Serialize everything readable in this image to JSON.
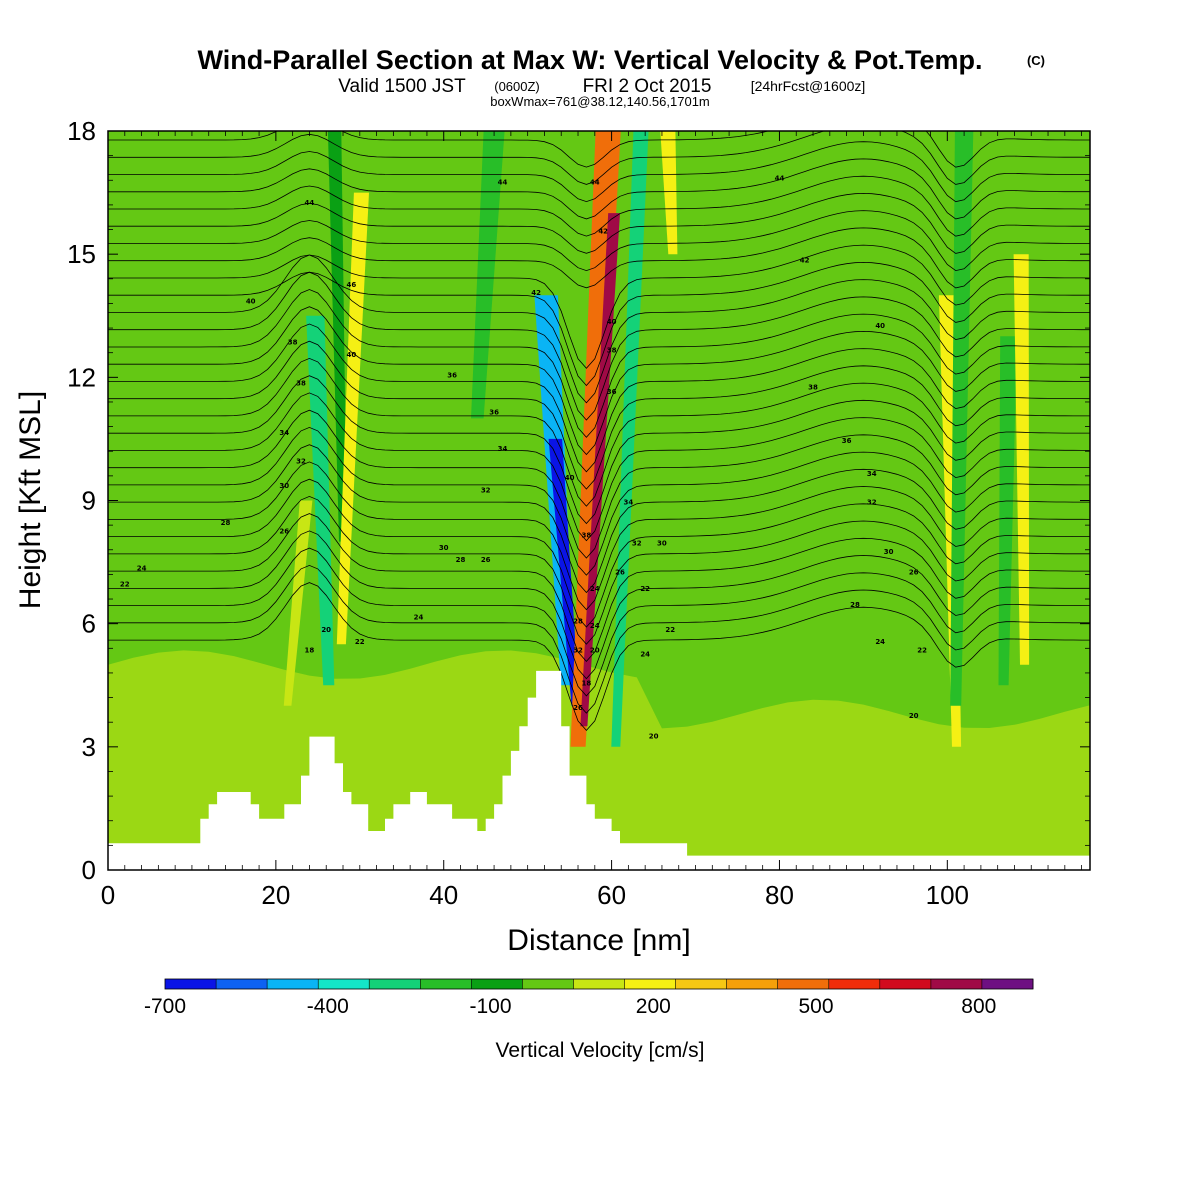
{
  "header": {
    "title": "Wind-Parallel Section at Max W: Vertical Velocity & Pot.Temp.",
    "title_mark": "(C)",
    "valid_prefix": "Valid 1500 JST",
    "valid_zulu": "(0600Z)",
    "valid_date": "FRI 2 Oct 2015",
    "forecast_tag": "[24hrFcst@1600z]",
    "box_info": "boxWmax=761@38.12,140.56,1701m"
  },
  "chart_data": {
    "type": "heatmap",
    "xlabel": "Distance [nm]",
    "ylabel": "Height [Kft MSL]",
    "xlim": [
      0,
      117
    ],
    "ylim": [
      0,
      18
    ],
    "x_ticks": [
      0,
      20,
      40,
      60,
      80,
      100
    ],
    "y_ticks": [
      0,
      3,
      6,
      9,
      12,
      15,
      18
    ],
    "grid": false,
    "colorbar": {
      "label": "Vertical Velocity [cm/s]",
      "orientation": "horizontal",
      "tick_labels": [
        "-700",
        "-400",
        "-100",
        "200",
        "500",
        "800"
      ],
      "tick_values": [
        -700,
        -400,
        -100,
        200,
        500,
        800
      ],
      "bins": [
        -700,
        -600,
        -500,
        -400,
        -300,
        -200,
        -100,
        0,
        100,
        200,
        300,
        400,
        500,
        600,
        700,
        800,
        900
      ],
      "colors": [
        "#0a14e6",
        "#0d62f2",
        "#0ab4f5",
        "#14e6c8",
        "#14d278",
        "#28be28",
        "#0aa014",
        "#64c814",
        "#c8e614",
        "#f5f014",
        "#f5c814",
        "#f5a00a",
        "#f06e0a",
        "#f02d0a",
        "#d20a1e",
        "#a00a46",
        "#6e1082"
      ]
    },
    "terrain": [
      [
        0,
        0.65
      ],
      [
        11,
        0.65
      ],
      [
        11,
        1.25
      ],
      [
        12,
        1.25
      ],
      [
        12,
        1.6
      ],
      [
        13,
        1.6
      ],
      [
        13,
        1.9
      ],
      [
        17,
        1.9
      ],
      [
        17,
        1.6
      ],
      [
        18,
        1.6
      ],
      [
        18,
        1.25
      ],
      [
        21,
        1.25
      ],
      [
        21,
        1.6
      ],
      [
        23,
        1.6
      ],
      [
        23,
        2.3
      ],
      [
        24,
        2.3
      ],
      [
        24,
        3.25
      ],
      [
        27,
        3.25
      ],
      [
        27,
        2.6
      ],
      [
        28,
        2.6
      ],
      [
        28,
        1.9
      ],
      [
        29,
        1.9
      ],
      [
        29,
        1.6
      ],
      [
        31,
        1.6
      ],
      [
        31,
        0.95
      ],
      [
        33,
        0.95
      ],
      [
        33,
        1.25
      ],
      [
        34,
        1.25
      ],
      [
        34,
        1.6
      ],
      [
        36,
        1.6
      ],
      [
        36,
        1.9
      ],
      [
        38,
        1.9
      ],
      [
        38,
        1.6
      ],
      [
        41,
        1.6
      ],
      [
        41,
        1.25
      ],
      [
        44,
        1.25
      ],
      [
        44,
        0.95
      ],
      [
        45,
        0.95
      ],
      [
        45,
        1.25
      ],
      [
        46,
        1.25
      ],
      [
        46,
        1.6
      ],
      [
        47,
        1.6
      ],
      [
        47,
        2.3
      ],
      [
        48,
        2.3
      ],
      [
        48,
        2.9
      ],
      [
        49,
        2.9
      ],
      [
        49,
        3.5
      ],
      [
        50,
        3.5
      ],
      [
        50,
        4.2
      ],
      [
        51,
        4.2
      ],
      [
        51,
        4.85
      ],
      [
        54,
        4.85
      ],
      [
        54,
        3.5
      ],
      [
        55,
        3.5
      ],
      [
        55,
        2.3
      ],
      [
        57,
        2.3
      ],
      [
        57,
        1.6
      ],
      [
        58,
        1.6
      ],
      [
        58,
        1.25
      ],
      [
        60,
        1.25
      ],
      [
        60,
        0.95
      ],
      [
        61,
        0.95
      ],
      [
        61,
        0.65
      ],
      [
        69,
        0.65
      ],
      [
        69,
        0.35
      ],
      [
        117,
        0.35
      ]
    ],
    "vertical_velocity_bands": [
      {
        "x": 22.5,
        "w": 1.5,
        "top": 9.0,
        "bottom": 4.0,
        "w_cms": 150,
        "tilt": 1.1
      },
      {
        "x": 25.5,
        "w": 2.2,
        "top": 13.5,
        "bottom": 4.5,
        "w_cms": -300,
        "tilt": -0.8
      },
      {
        "x": 27.5,
        "w": 1.6,
        "top": 18,
        "bottom": 8.0,
        "w_cms": -100,
        "tilt": -0.5
      },
      {
        "x": 29.0,
        "w": 1.8,
        "top": 16.5,
        "bottom": 5.5,
        "w_cms": 250,
        "tilt": 1.2
      },
      {
        "x": 45.0,
        "w": 2.5,
        "top": 18,
        "bottom": 11.0,
        "w_cms": -150,
        "tilt": 1.0
      },
      {
        "x": 53.5,
        "w": 2.8,
        "top": 14.0,
        "bottom": 4.5,
        "w_cms": -450,
        "tilt": -1.3
      },
      {
        "x": 54.5,
        "w": 1.6,
        "top": 10.5,
        "bottom": 4.0,
        "w_cms": -700,
        "tilt": -1.2
      },
      {
        "x": 57.8,
        "w": 3.0,
        "top": 18,
        "bottom": 3.0,
        "w_cms": 550,
        "tilt": 1.8
      },
      {
        "x": 58.5,
        "w": 1.4,
        "top": 16.0,
        "bottom": 3.5,
        "w_cms": 800,
        "tilt": 1.8
      },
      {
        "x": 62.0,
        "w": 1.8,
        "top": 18,
        "bottom": 3.0,
        "w_cms": -250,
        "tilt": 1.5
      },
      {
        "x": 67.0,
        "w": 1.8,
        "top": 18,
        "bottom": 15.0,
        "w_cms": 220,
        "tilt": -0.3
      },
      {
        "x": 100.5,
        "w": 1.8,
        "top": 14.0,
        "bottom": 3.0,
        "w_cms": 220,
        "tilt": -0.6
      },
      {
        "x": 101.5,
        "w": 2.2,
        "top": 18,
        "bottom": 4.0,
        "w_cms": -150,
        "tilt": 0.5
      },
      {
        "x": 107.0,
        "w": 2.0,
        "top": 13.0,
        "bottom": 4.5,
        "w_cms": -200,
        "tilt": 0.3
      },
      {
        "x": 109.0,
        "w": 1.8,
        "top": 15.0,
        "bottom": 5.0,
        "w_cms": 200,
        "tilt": -0.2
      }
    ],
    "theta_contour_labels": [
      {
        "x": 24,
        "y": 16.2,
        "text": "44"
      },
      {
        "x": 17,
        "y": 13.8,
        "text": "40"
      },
      {
        "x": 29,
        "y": 14.2,
        "text": "46"
      },
      {
        "x": 22,
        "y": 12.8,
        "text": "38"
      },
      {
        "x": 29,
        "y": 12.5,
        "text": "40"
      },
      {
        "x": 23,
        "y": 11.8,
        "text": "38"
      },
      {
        "x": 21,
        "y": 10.6,
        "text": "34"
      },
      {
        "x": 23,
        "y": 9.9,
        "text": "32"
      },
      {
        "x": 21,
        "y": 9.3,
        "text": "30"
      },
      {
        "x": 14,
        "y": 8.4,
        "text": "28"
      },
      {
        "x": 21,
        "y": 8.2,
        "text": "26"
      },
      {
        "x": 4,
        "y": 7.3,
        "text": "24"
      },
      {
        "x": 2,
        "y": 6.9,
        "text": "22"
      },
      {
        "x": 26,
        "y": 5.8,
        "text": "20"
      },
      {
        "x": 24,
        "y": 5.3,
        "text": "18"
      },
      {
        "x": 30,
        "y": 5.5,
        "text": "22"
      },
      {
        "x": 37,
        "y": 6.1,
        "text": "24"
      },
      {
        "x": 47,
        "y": 16.7,
        "text": "44"
      },
      {
        "x": 41,
        "y": 12.0,
        "text": "36"
      },
      {
        "x": 46,
        "y": 11.1,
        "text": "36"
      },
      {
        "x": 47,
        "y": 10.2,
        "text": "34"
      },
      {
        "x": 45,
        "y": 9.2,
        "text": "32"
      },
      {
        "x": 40,
        "y": 7.8,
        "text": "30"
      },
      {
        "x": 42,
        "y": 7.5,
        "text": "28"
      },
      {
        "x": 45,
        "y": 7.5,
        "text": "26"
      },
      {
        "x": 51,
        "y": 14.0,
        "text": "42"
      },
      {
        "x": 55,
        "y": 9.5,
        "text": "40"
      },
      {
        "x": 58,
        "y": 16.7,
        "text": "44"
      },
      {
        "x": 59,
        "y": 15.5,
        "text": "42"
      },
      {
        "x": 60,
        "y": 13.3,
        "text": "40"
      },
      {
        "x": 60,
        "y": 12.6,
        "text": "38"
      },
      {
        "x": 60,
        "y": 11.6,
        "text": "36"
      },
      {
        "x": 62,
        "y": 8.9,
        "text": "34"
      },
      {
        "x": 57,
        "y": 8.1,
        "text": "38"
      },
      {
        "x": 63,
        "y": 7.9,
        "text": "32"
      },
      {
        "x": 66,
        "y": 7.9,
        "text": "30"
      },
      {
        "x": 61,
        "y": 7.2,
        "text": "26"
      },
      {
        "x": 64,
        "y": 6.8,
        "text": "22"
      },
      {
        "x": 58,
        "y": 6.8,
        "text": "24"
      },
      {
        "x": 56,
        "y": 6.0,
        "text": "28"
      },
      {
        "x": 58,
        "y": 5.9,
        "text": "24"
      },
      {
        "x": 56,
        "y": 5.3,
        "text": "32"
      },
      {
        "x": 58,
        "y": 5.3,
        "text": "20"
      },
      {
        "x": 57,
        "y": 4.5,
        "text": "18"
      },
      {
        "x": 56,
        "y": 3.9,
        "text": "26"
      },
      {
        "x": 67,
        "y": 5.8,
        "text": "22"
      },
      {
        "x": 64,
        "y": 5.2,
        "text": "24"
      },
      {
        "x": 65,
        "y": 3.2,
        "text": "20"
      },
      {
        "x": 80,
        "y": 16.8,
        "text": "44"
      },
      {
        "x": 83,
        "y": 14.8,
        "text": "42"
      },
      {
        "x": 92,
        "y": 13.2,
        "text": "40"
      },
      {
        "x": 84,
        "y": 11.7,
        "text": "38"
      },
      {
        "x": 88,
        "y": 10.4,
        "text": "36"
      },
      {
        "x": 91,
        "y": 9.6,
        "text": "34"
      },
      {
        "x": 91,
        "y": 8.9,
        "text": "32"
      },
      {
        "x": 93,
        "y": 7.7,
        "text": "30"
      },
      {
        "x": 96,
        "y": 7.2,
        "text": "26"
      },
      {
        "x": 89,
        "y": 6.4,
        "text": "28"
      },
      {
        "x": 92,
        "y": 5.5,
        "text": "24"
      },
      {
        "x": 97,
        "y": 5.3,
        "text": "22"
      },
      {
        "x": 96,
        "y": 3.7,
        "text": "20"
      }
    ]
  }
}
